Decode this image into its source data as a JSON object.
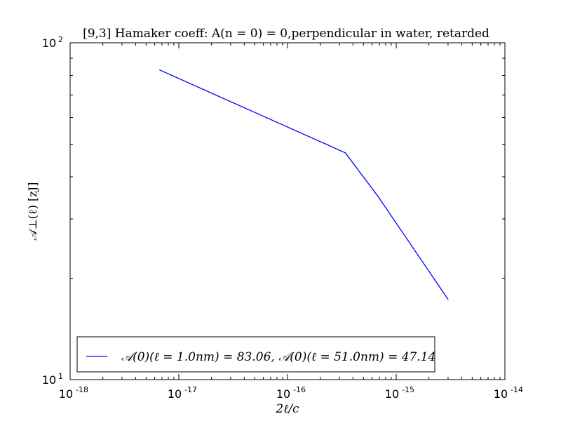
{
  "chart_data": {
    "type": "line",
    "title": "[9,3]  Hamaker coeff: A(n = 0) = 0,perpendicular in water, retarded",
    "xlabel": "2ℓ/c",
    "ylabel": "𝒜⊥(ℓ)   [zJ]",
    "xscale": "log",
    "yscale": "log",
    "xlim": [
      1e-18,
      1e-14
    ],
    "ylim": [
      10,
      100
    ],
    "grid": false,
    "legend_location": "lower-left",
    "x_tick_labels": [
      "10",
      "10",
      "10",
      "10",
      "10"
    ],
    "x_tick_exponents": [
      "-18",
      "-17",
      "-16",
      "-15",
      "-14"
    ],
    "y_tick_labels": [
      "10",
      "10"
    ],
    "y_tick_exponents": [
      "1",
      "2"
    ],
    "series": [
      {
        "name": "𝒜(0)(ℓ = 1.0nm) = 83.06,   𝒜(0)(ℓ = 51.0nm) = 47.14",
        "color": "#0000ff",
        "x": [
          6.67e-18,
          3.4e-16,
          6.8e-16,
          3e-15
        ],
        "y": [
          83.06,
          47.14,
          35.0,
          17.3
        ]
      }
    ]
  }
}
